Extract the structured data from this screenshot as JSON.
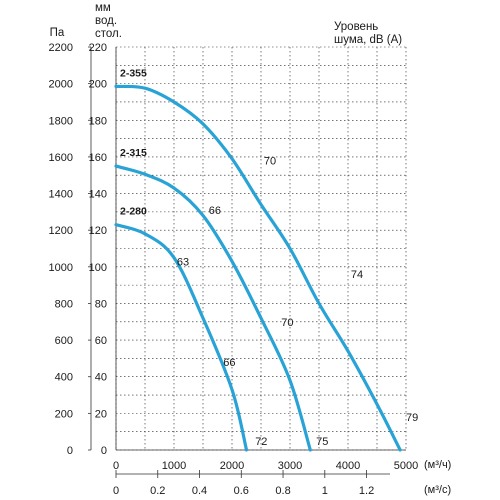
{
  "chart_data": {
    "type": "line",
    "headers": {
      "pa": "Па",
      "mm": [
        "мм",
        "вод.",
        "стол."
      ],
      "noise": [
        "Уровень",
        "шума, dB (A)"
      ]
    },
    "units": {
      "x_primary": "(м³/ч)",
      "x_secondary": "(м³/с)"
    },
    "y_pa_ticks": [
      0,
      200,
      400,
      600,
      800,
      1000,
      1200,
      1400,
      1600,
      1800,
      2000,
      2200
    ],
    "y_mm_ticks": [
      0,
      20,
      40,
      60,
      80,
      100,
      120,
      140,
      160,
      180,
      200,
      220
    ],
    "x_ticks": [
      0,
      1000,
      2000,
      3000,
      4000,
      5000
    ],
    "x_sec_ticks": [
      "0",
      "0.2",
      "0.4",
      "0.6",
      "0.8",
      "1",
      "1.2"
    ],
    "ylim": [
      0,
      2200
    ],
    "xlim": [
      0,
      5000
    ],
    "grid": true,
    "series": [
      {
        "name": "2-355",
        "color": "#29a3d6",
        "points": [
          [
            0,
            1985
          ],
          [
            500,
            1975
          ],
          [
            1000,
            1900
          ],
          [
            1500,
            1780
          ],
          [
            2000,
            1590
          ],
          [
            2500,
            1340
          ],
          [
            3000,
            1100
          ],
          [
            3500,
            800
          ],
          [
            4000,
            540
          ],
          [
            4500,
            250
          ],
          [
            4900,
            0
          ]
        ],
        "noise": [
          {
            "label": "70",
            "x": 2550,
            "y": 1580
          },
          {
            "label": "74",
            "x": 4050,
            "y": 960
          },
          {
            "label": "79",
            "x": 5000,
            "y": 180
          }
        ]
      },
      {
        "name": "2-315",
        "color": "#29a3d6",
        "points": [
          [
            0,
            1550
          ],
          [
            500,
            1505
          ],
          [
            1000,
            1430
          ],
          [
            1500,
            1280
          ],
          [
            2000,
            1030
          ],
          [
            2500,
            720
          ],
          [
            3000,
            380
          ],
          [
            3350,
            0
          ]
        ],
        "noise": [
          {
            "label": "66",
            "x": 1600,
            "y": 1310
          },
          {
            "label": "70",
            "x": 2850,
            "y": 700
          },
          {
            "label": "75",
            "x": 3450,
            "y": 50
          }
        ]
      },
      {
        "name": "2-280",
        "color": "#29a3d6",
        "points": [
          [
            0,
            1230
          ],
          [
            500,
            1180
          ],
          [
            1000,
            1050
          ],
          [
            1500,
            720
          ],
          [
            2000,
            330
          ],
          [
            2250,
            0
          ]
        ],
        "noise": [
          {
            "label": "63",
            "x": 1050,
            "y": 1030
          },
          {
            "label": "66",
            "x": 1850,
            "y": 480
          },
          {
            "label": "72",
            "x": 2400,
            "y": 50
          }
        ]
      }
    ]
  }
}
